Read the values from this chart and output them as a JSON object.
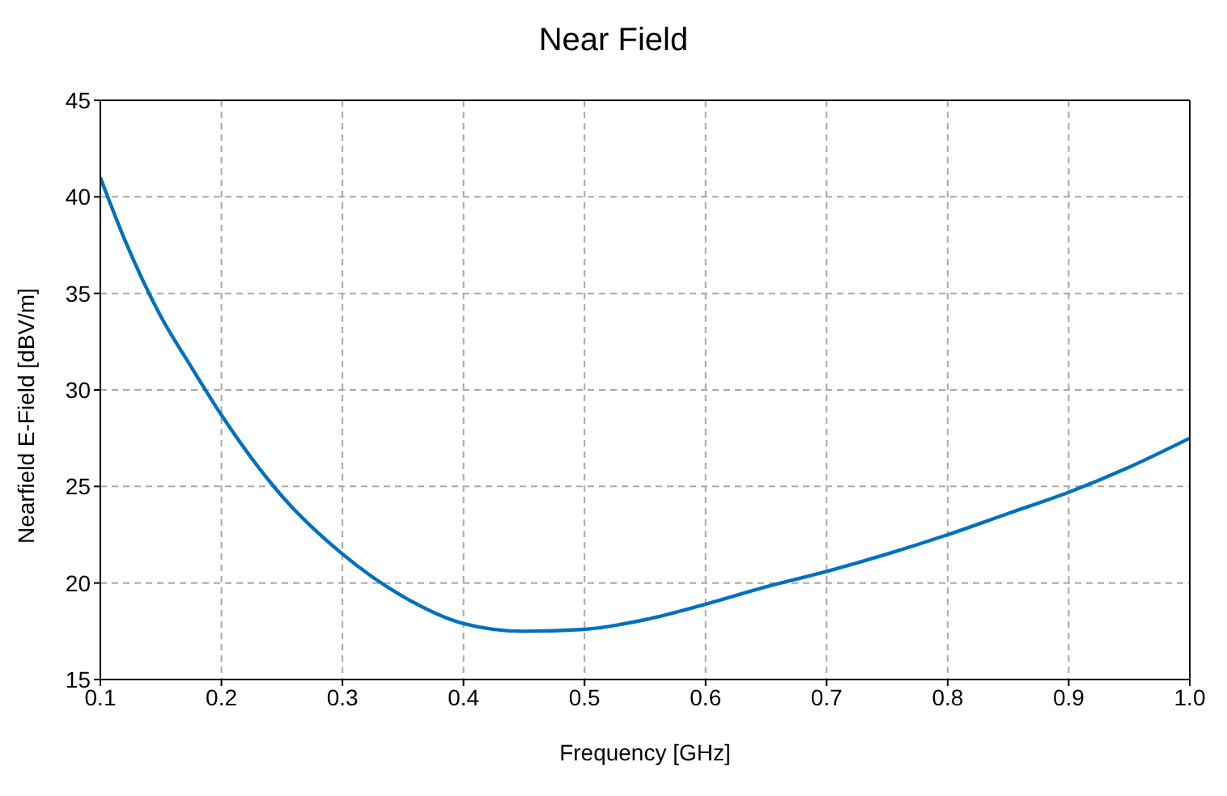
{
  "chart_data": {
    "type": "line",
    "title": "Near Field",
    "xlabel": "Frequency [GHz]",
    "ylabel": "Nearfield E-Field [dBV/m]",
    "x": [
      0.1,
      0.12,
      0.15,
      0.175,
      0.2,
      0.25,
      0.3,
      0.35,
      0.4,
      0.45,
      0.5,
      0.55,
      0.6,
      0.65,
      0.7,
      0.75,
      0.8,
      0.85,
      0.9,
      0.95,
      1.0
    ],
    "series": [
      {
        "color": "#0070c0",
        "values": [
          41.0,
          37.8,
          33.8,
          31.2,
          28.7,
          24.5,
          21.5,
          19.3,
          17.9,
          17.5,
          17.6,
          18.1,
          18.9,
          19.8,
          20.6,
          21.5,
          22.5,
          23.6,
          24.7,
          26.0,
          27.5
        ]
      }
    ],
    "xlim": [
      0.1,
      1.0
    ],
    "xticks": [
      {
        "value": 0.1,
        "label": "0.1"
      },
      {
        "value": 0.2,
        "label": "0.2"
      },
      {
        "value": 0.3,
        "label": "0.3"
      },
      {
        "value": 0.4,
        "label": "0.4"
      },
      {
        "value": 0.5,
        "label": "0.5"
      },
      {
        "value": 0.6,
        "label": "0.6"
      },
      {
        "value": 0.7,
        "label": "0.7"
      },
      {
        "value": 0.8,
        "label": "0.8"
      },
      {
        "value": 0.9,
        "label": "0.9"
      },
      {
        "value": 1.0,
        "label": "1.0"
      }
    ],
    "ylim": [
      15,
      45
    ],
    "yticks": [
      15,
      20,
      25,
      30,
      35,
      40,
      45
    ],
    "grid": true,
    "marker": "none",
    "line_style": "solid",
    "legend": false
  }
}
